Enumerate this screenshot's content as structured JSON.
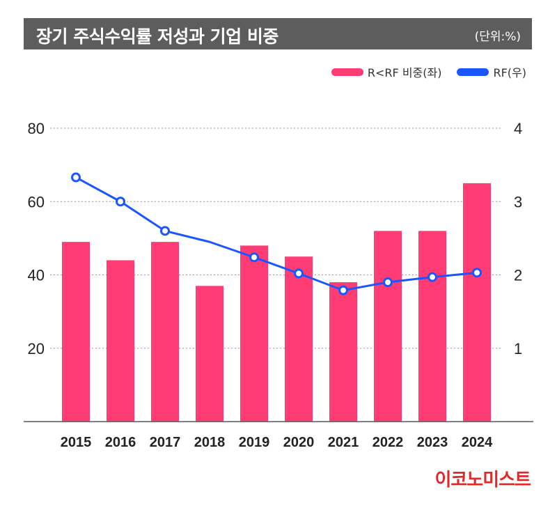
{
  "title": "장기 주식수익률 저성과 기업 비중",
  "unit": "(단위:%)",
  "legend": [
    {
      "label": "R<RF 비중(좌)",
      "color": "#ff3d74"
    },
    {
      "label": "RF(우)",
      "color": "#1a56ff"
    }
  ],
  "logo": "이코노미스트",
  "chart_data": {
    "type": "bar",
    "categories": [
      "2015",
      "2016",
      "2017",
      "2018",
      "2019",
      "2020",
      "2021",
      "2022",
      "2023",
      "2024"
    ],
    "series": [
      {
        "name": "R<RF 비중(좌)",
        "type": "bar",
        "axis": "left",
        "color": "#ff3d74",
        "values": [
          49,
          44,
          49,
          37,
          48,
          45,
          38,
          52,
          52,
          65
        ]
      },
      {
        "name": "RF(우)",
        "type": "line",
        "axis": "right",
        "color": "#1a56ff",
        "values": [
          3.33,
          3.0,
          2.6,
          2.45,
          2.24,
          2.02,
          1.79,
          1.9,
          1.97,
          2.03
        ],
        "markers": [
          true,
          true,
          true,
          false,
          true,
          true,
          true,
          true,
          true,
          true
        ]
      }
    ],
    "y_left": {
      "ylim": [
        0,
        80
      ],
      "ticks": [
        "20",
        "40",
        "60",
        "80"
      ]
    },
    "y_right": {
      "ylim": [
        0,
        4
      ],
      "ticks": [
        "1",
        "2",
        "3",
        "4"
      ]
    },
    "grid": true,
    "legend_position": "top-right"
  }
}
